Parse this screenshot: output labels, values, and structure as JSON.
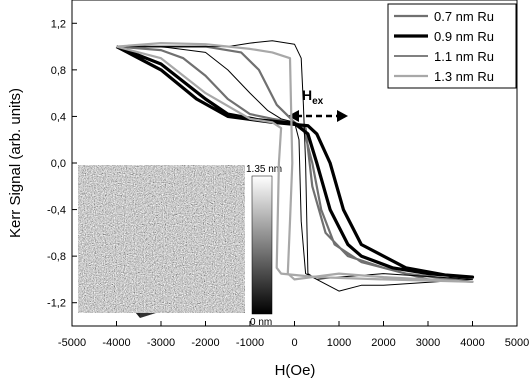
{
  "chart_data": {
    "type": "line",
    "x_label": "H(Oe)",
    "y_label": "Kerr Signal (arb. units)",
    "xlim": [
      -5000,
      5000
    ],
    "ylim": [
      -1.4,
      1.4
    ],
    "xticks": [
      -5000,
      -4000,
      -3000,
      -2000,
      -1000,
      0,
      1000,
      2000,
      3000,
      4000,
      5000
    ],
    "yticks": [
      {
        "value": -1.2,
        "label": "-1,2"
      },
      {
        "value": -0.8,
        "label": "-0,8"
      },
      {
        "value": -0.4,
        "label": "-0,4"
      },
      {
        "value": 0,
        "label": "0,0"
      },
      {
        "value": 0.4,
        "label": "0,4"
      },
      {
        "value": 0.8,
        "label": "0,8"
      },
      {
        "value": 1.2,
        "label": "1,2"
      }
    ],
    "grid": false,
    "legend": "top-right",
    "annotation": {
      "main": "H",
      "sub": "ex"
    },
    "inset": {
      "top_label": "1.35 nm",
      "bottom_label": "0 nm"
    },
    "series": [
      {
        "name": "0.7 nm Ru",
        "color": "#707070",
        "width": 2.2,
        "x": [
          -4000,
          -3000,
          -2500,
          -2000,
          -1500,
          -1000,
          -500,
          0,
          200,
          400,
          600,
          900,
          1500,
          2500,
          4000,
          3000,
          2000,
          1200,
          700,
          400,
          250,
          0,
          -400,
          -800,
          -1200,
          -2000,
          -4000
        ],
        "values": [
          1.0,
          0.97,
          0.9,
          0.75,
          0.55,
          0.42,
          0.38,
          0.35,
          0.3,
          0.0,
          -0.4,
          -0.7,
          -0.85,
          -0.95,
          -1.02,
          -1.0,
          -0.9,
          -0.8,
          -0.6,
          -0.2,
          0.3,
          0.35,
          0.5,
          0.8,
          0.95,
          1.0,
          1.0
        ]
      },
      {
        "name": "0.9 nm Ru",
        "color": "#000000",
        "width": 3.2,
        "x": [
          -4000,
          -3000,
          -2000,
          -1500,
          -800,
          0,
          300,
          500,
          800,
          1200,
          1500,
          2200,
          3000,
          4000,
          3500,
          2500,
          1500,
          1100,
          800,
          500,
          300,
          -500,
          -1500,
          -2200,
          -3000,
          -4000
        ],
        "values": [
          1.0,
          0.85,
          0.55,
          0.42,
          0.37,
          0.34,
          0.25,
          0.0,
          -0.4,
          -0.7,
          -0.8,
          -0.9,
          -0.95,
          -0.98,
          -0.97,
          -0.9,
          -0.7,
          -0.4,
          0.0,
          0.25,
          0.32,
          0.35,
          0.4,
          0.55,
          0.8,
          1.0
        ]
      },
      {
        "name": "1.1 nm Ru",
        "color": "#000000",
        "width": 1,
        "x": [
          -4000,
          -3000,
          -2000,
          -1500,
          -1000,
          -600,
          -300,
          0,
          100,
          150,
          250,
          500,
          1000,
          2000,
          4000,
          2000,
          1500,
          1000,
          500,
          300,
          250,
          200,
          150,
          0,
          -500,
          -1000,
          -1500,
          -4000
        ],
        "values": [
          1.0,
          1.0,
          0.95,
          0.8,
          0.6,
          0.45,
          0.38,
          0.35,
          0.2,
          -0.5,
          -0.95,
          -1.0,
          -0.98,
          -0.95,
          -1.0,
          -1.05,
          -1.05,
          -1.1,
          -1.0,
          -0.95,
          0.0,
          0.5,
          0.9,
          1.02,
          1.05,
          1.03,
          1.0,
          1.0
        ]
      },
      {
        "name": "1.3 nm Ru",
        "color": "#a8a8a8",
        "width": 2.2,
        "x": [
          -4000,
          -3000,
          -2000,
          -1000,
          -500,
          -100,
          -50,
          -100,
          -150,
          0,
          1000,
          2000,
          4000,
          2000,
          500,
          -300,
          -400,
          -350,
          -300,
          -500,
          -1000,
          -2000,
          -3000,
          -4000
        ],
        "values": [
          1.0,
          1.03,
          1.02,
          0.98,
          0.95,
          0.9,
          0.0,
          -0.5,
          -0.95,
          -1.0,
          -0.95,
          -0.98,
          -1.02,
          -1.0,
          -0.98,
          -0.95,
          -0.9,
          0.0,
          0.3,
          0.35,
          0.38,
          0.6,
          0.9,
          1.0
        ]
      }
    ]
  }
}
